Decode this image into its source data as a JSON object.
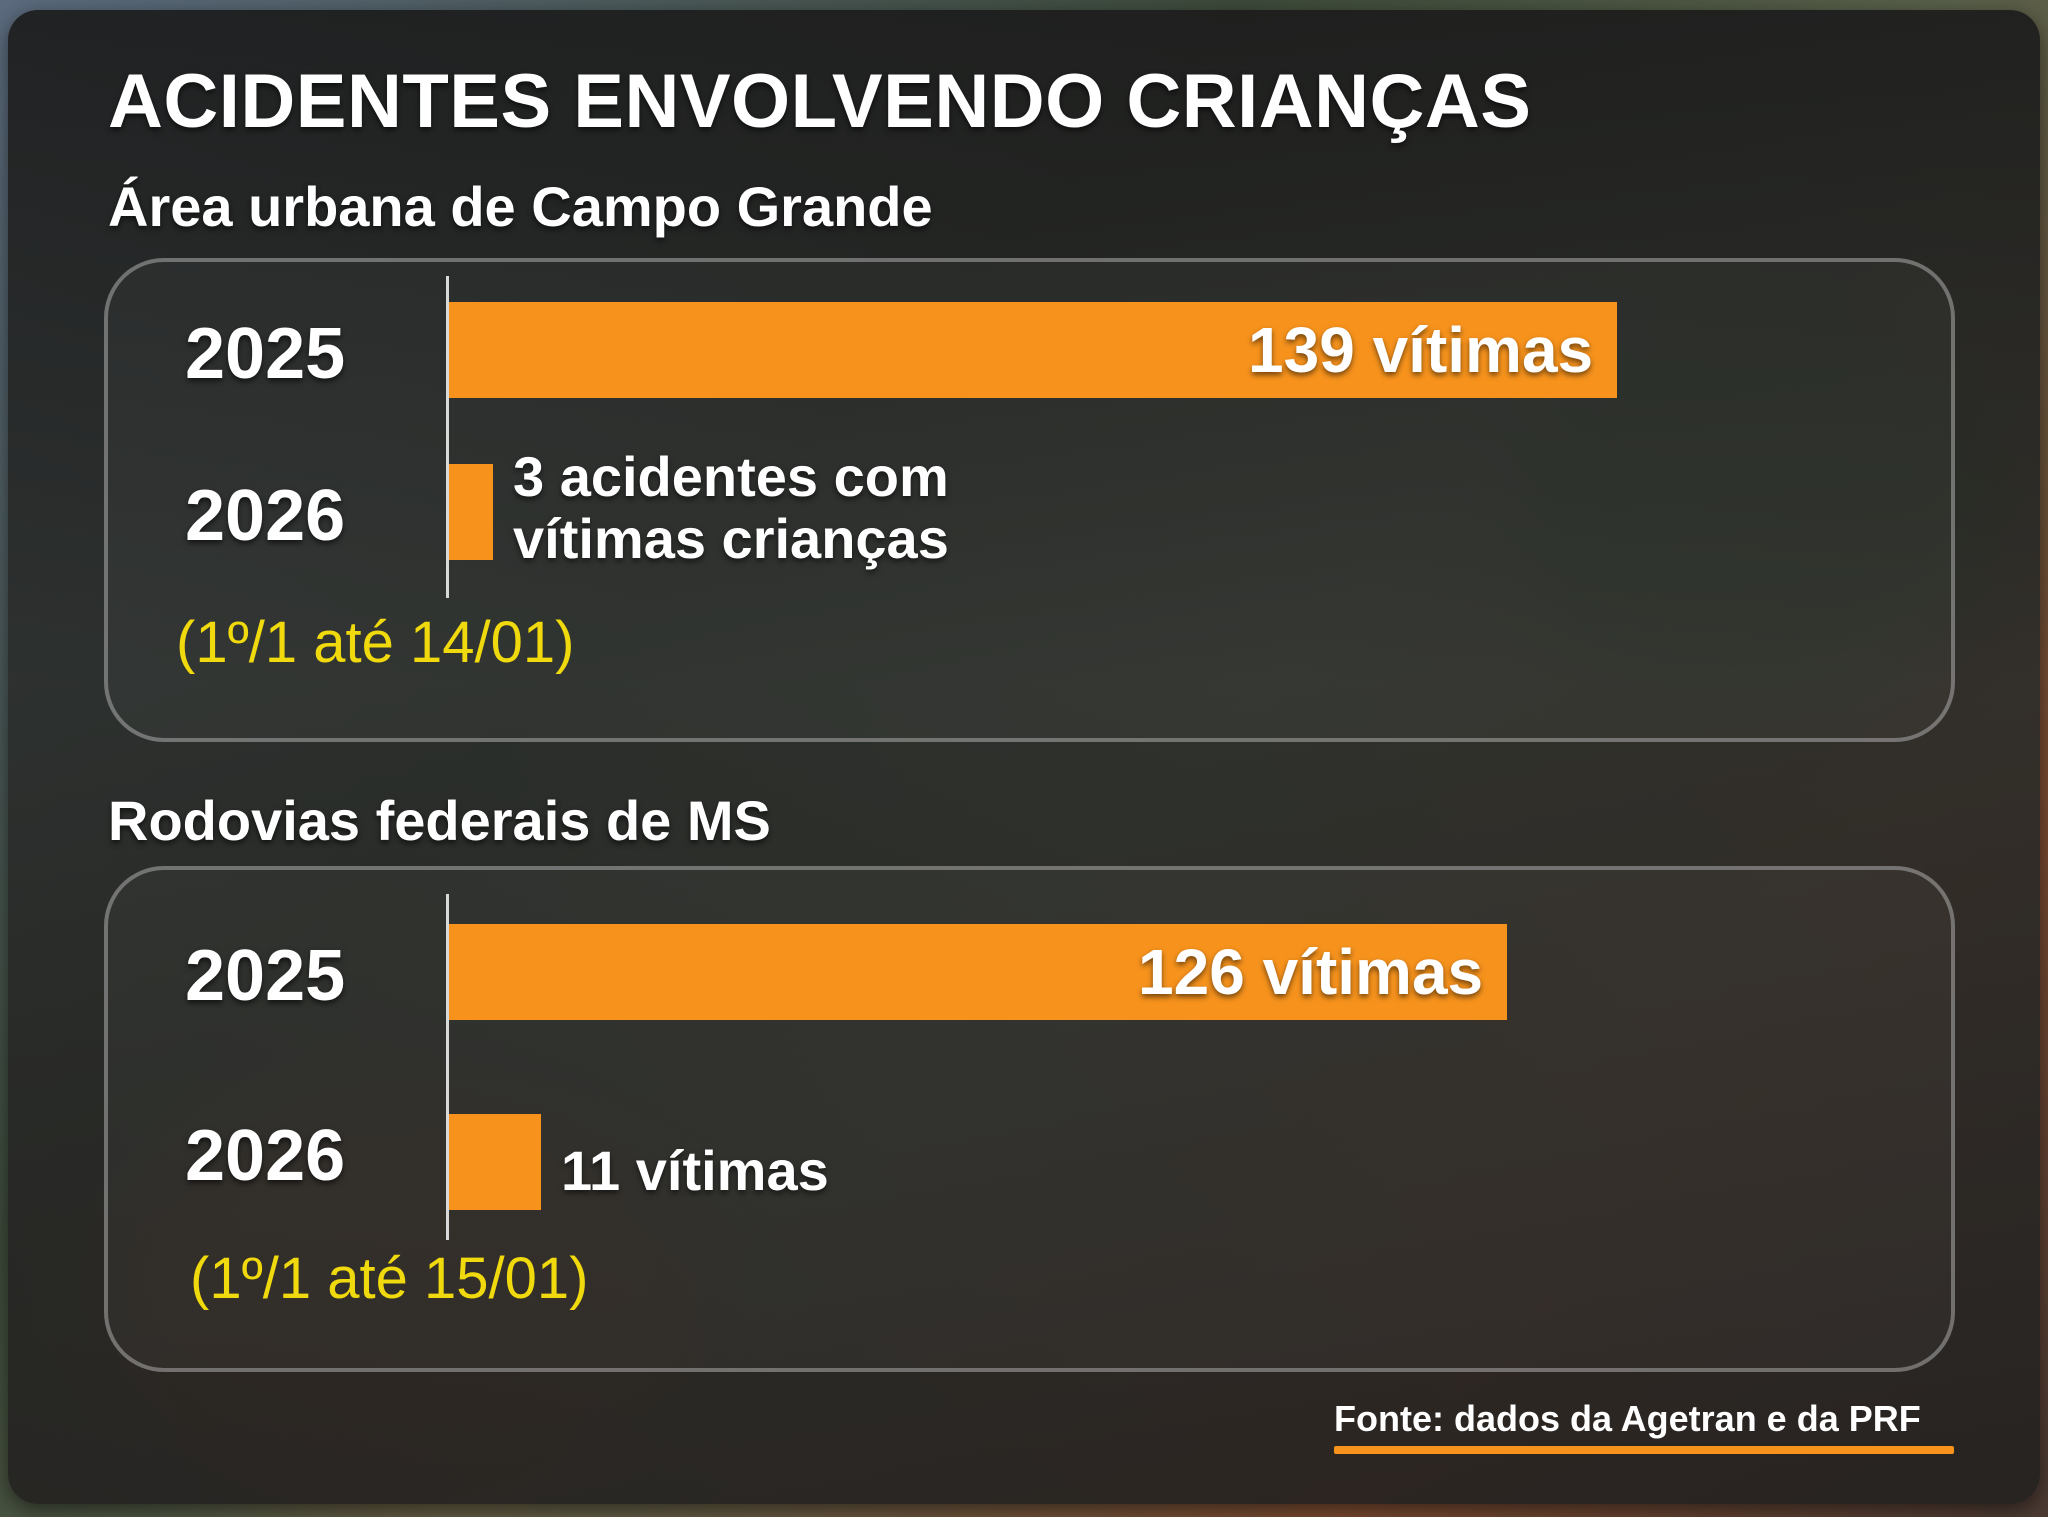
{
  "title": "ACIDENTES ENVOLVENDO CRIANÇAS",
  "source": "Fonte: dados da Agetran e da PRF",
  "colors": {
    "bar": "#f7931d",
    "period_text": "#f0d90c",
    "text": "#ffffff"
  },
  "chart_data": [
    {
      "type": "bar",
      "orientation": "horizontal",
      "title": "Área urbana de Campo Grande",
      "categories": [
        "2025",
        "2026"
      ],
      "values": [
        139,
        3
      ],
      "labels": [
        "139 vítimas",
        "3 acidentes com\nvítimas crianças"
      ],
      "period_note": "(1º/1 até 14/01)"
    },
    {
      "type": "bar",
      "orientation": "horizontal",
      "title": "Rodovias federais de MS",
      "categories": [
        "2025",
        "2026"
      ],
      "values": [
        126,
        11
      ],
      "labels": [
        "126 vítimas",
        "11 vítimas"
      ],
      "period_note": "(1º/1 até 15/01)"
    }
  ]
}
